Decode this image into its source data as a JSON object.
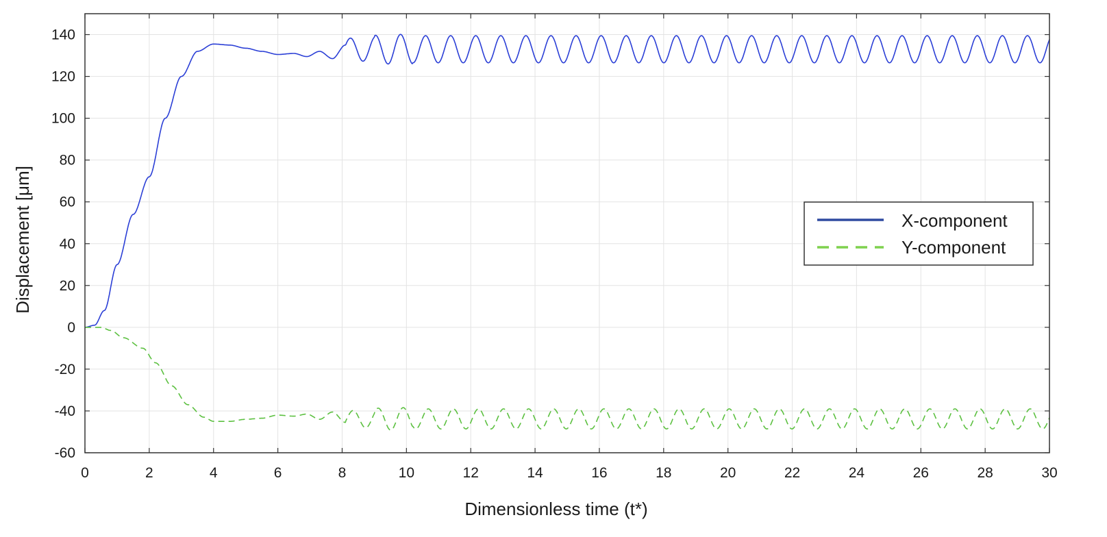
{
  "chart_data": {
    "type": "line",
    "xlabel": "Dimensionless time (t*)",
    "ylabel": "Displacement [μm]",
    "xlim": [
      0,
      30
    ],
    "ylim": [
      -60,
      150
    ],
    "x_ticks": [
      0,
      2,
      4,
      6,
      8,
      10,
      12,
      14,
      16,
      18,
      20,
      22,
      24,
      26,
      28,
      30
    ],
    "y_ticks": [
      -60,
      -40,
      -20,
      0,
      20,
      40,
      60,
      80,
      100,
      120,
      140
    ],
    "grid": true,
    "legend_position": "right",
    "series": [
      {
        "name": "X-component",
        "color": "#2b3fd6",
        "legend_color": "#2f4aa0",
        "style": "solid",
        "keypoints": [
          [
            0,
            0
          ],
          [
            0.3,
            1
          ],
          [
            0.6,
            8
          ],
          [
            1,
            30
          ],
          [
            1.5,
            54
          ],
          [
            2,
            72
          ],
          [
            2.5,
            100
          ],
          [
            3,
            120
          ],
          [
            3.5,
            132
          ],
          [
            4,
            135.5
          ],
          [
            4.5,
            135
          ],
          [
            5,
            133.5
          ],
          [
            5.5,
            132
          ],
          [
            6,
            130.5
          ],
          [
            6.5,
            131
          ],
          [
            6.9,
            129.5
          ],
          [
            7.3,
            132
          ],
          [
            7.7,
            128.5
          ],
          [
            8.1,
            135
          ]
        ],
        "oscillation": {
          "start": 8.1,
          "center": 133,
          "amplitude": 6.5,
          "period": 0.78,
          "peak_max": 140.5,
          "trough_min": 126
        }
      },
      {
        "name": "Y-component",
        "color": "#5cc040",
        "legend_color": "#7fd14e",
        "style": "dashed",
        "keypoints": [
          [
            0,
            0
          ],
          [
            0.5,
            0
          ],
          [
            0.8,
            -1.5
          ],
          [
            1.2,
            -5
          ],
          [
            1.8,
            -10
          ],
          [
            2.2,
            -17
          ],
          [
            2.7,
            -28
          ],
          [
            3.2,
            -37
          ],
          [
            3.7,
            -43
          ],
          [
            4,
            -45
          ],
          [
            4.5,
            -45
          ],
          [
            5,
            -44
          ],
          [
            5.5,
            -43.5
          ],
          [
            6,
            -42
          ],
          [
            6.5,
            -42.5
          ],
          [
            6.9,
            -41.5
          ],
          [
            7.3,
            -44
          ],
          [
            7.7,
            -40.5
          ],
          [
            8.1,
            -45.5
          ]
        ],
        "oscillation": {
          "start": 8.1,
          "center": -43.8,
          "amplitude": 4.8,
          "period": 0.78,
          "peak_max": -39,
          "trough_min": -49.5
        }
      }
    ]
  }
}
